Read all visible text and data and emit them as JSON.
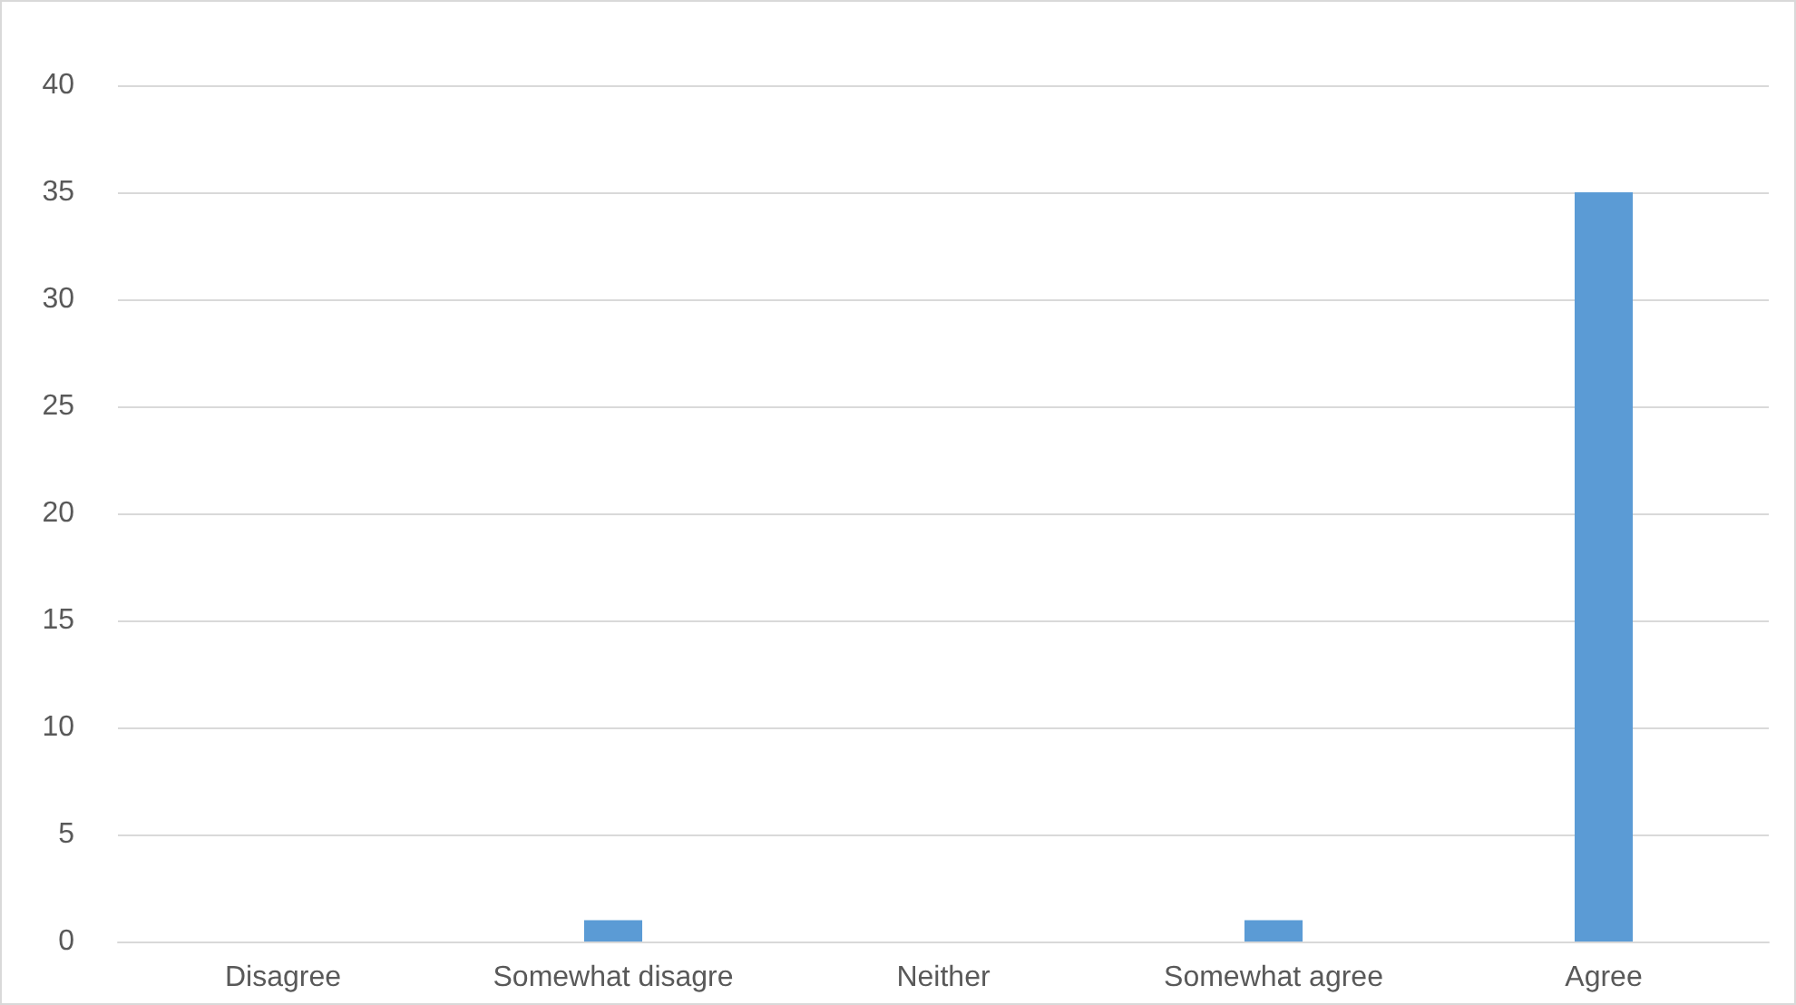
{
  "chart_data": {
    "type": "bar",
    "categories": [
      "Disagree",
      "Somewhat disagre",
      "Neither",
      "Somewhat agree",
      "Agree"
    ],
    "values": [
      0,
      1,
      0,
      1,
      35
    ],
    "color": "#5b9bd5",
    "ylim": [
      0,
      40
    ],
    "yticks": [
      0,
      5,
      10,
      15,
      20,
      25,
      30,
      35,
      40
    ],
    "grid": "y"
  }
}
